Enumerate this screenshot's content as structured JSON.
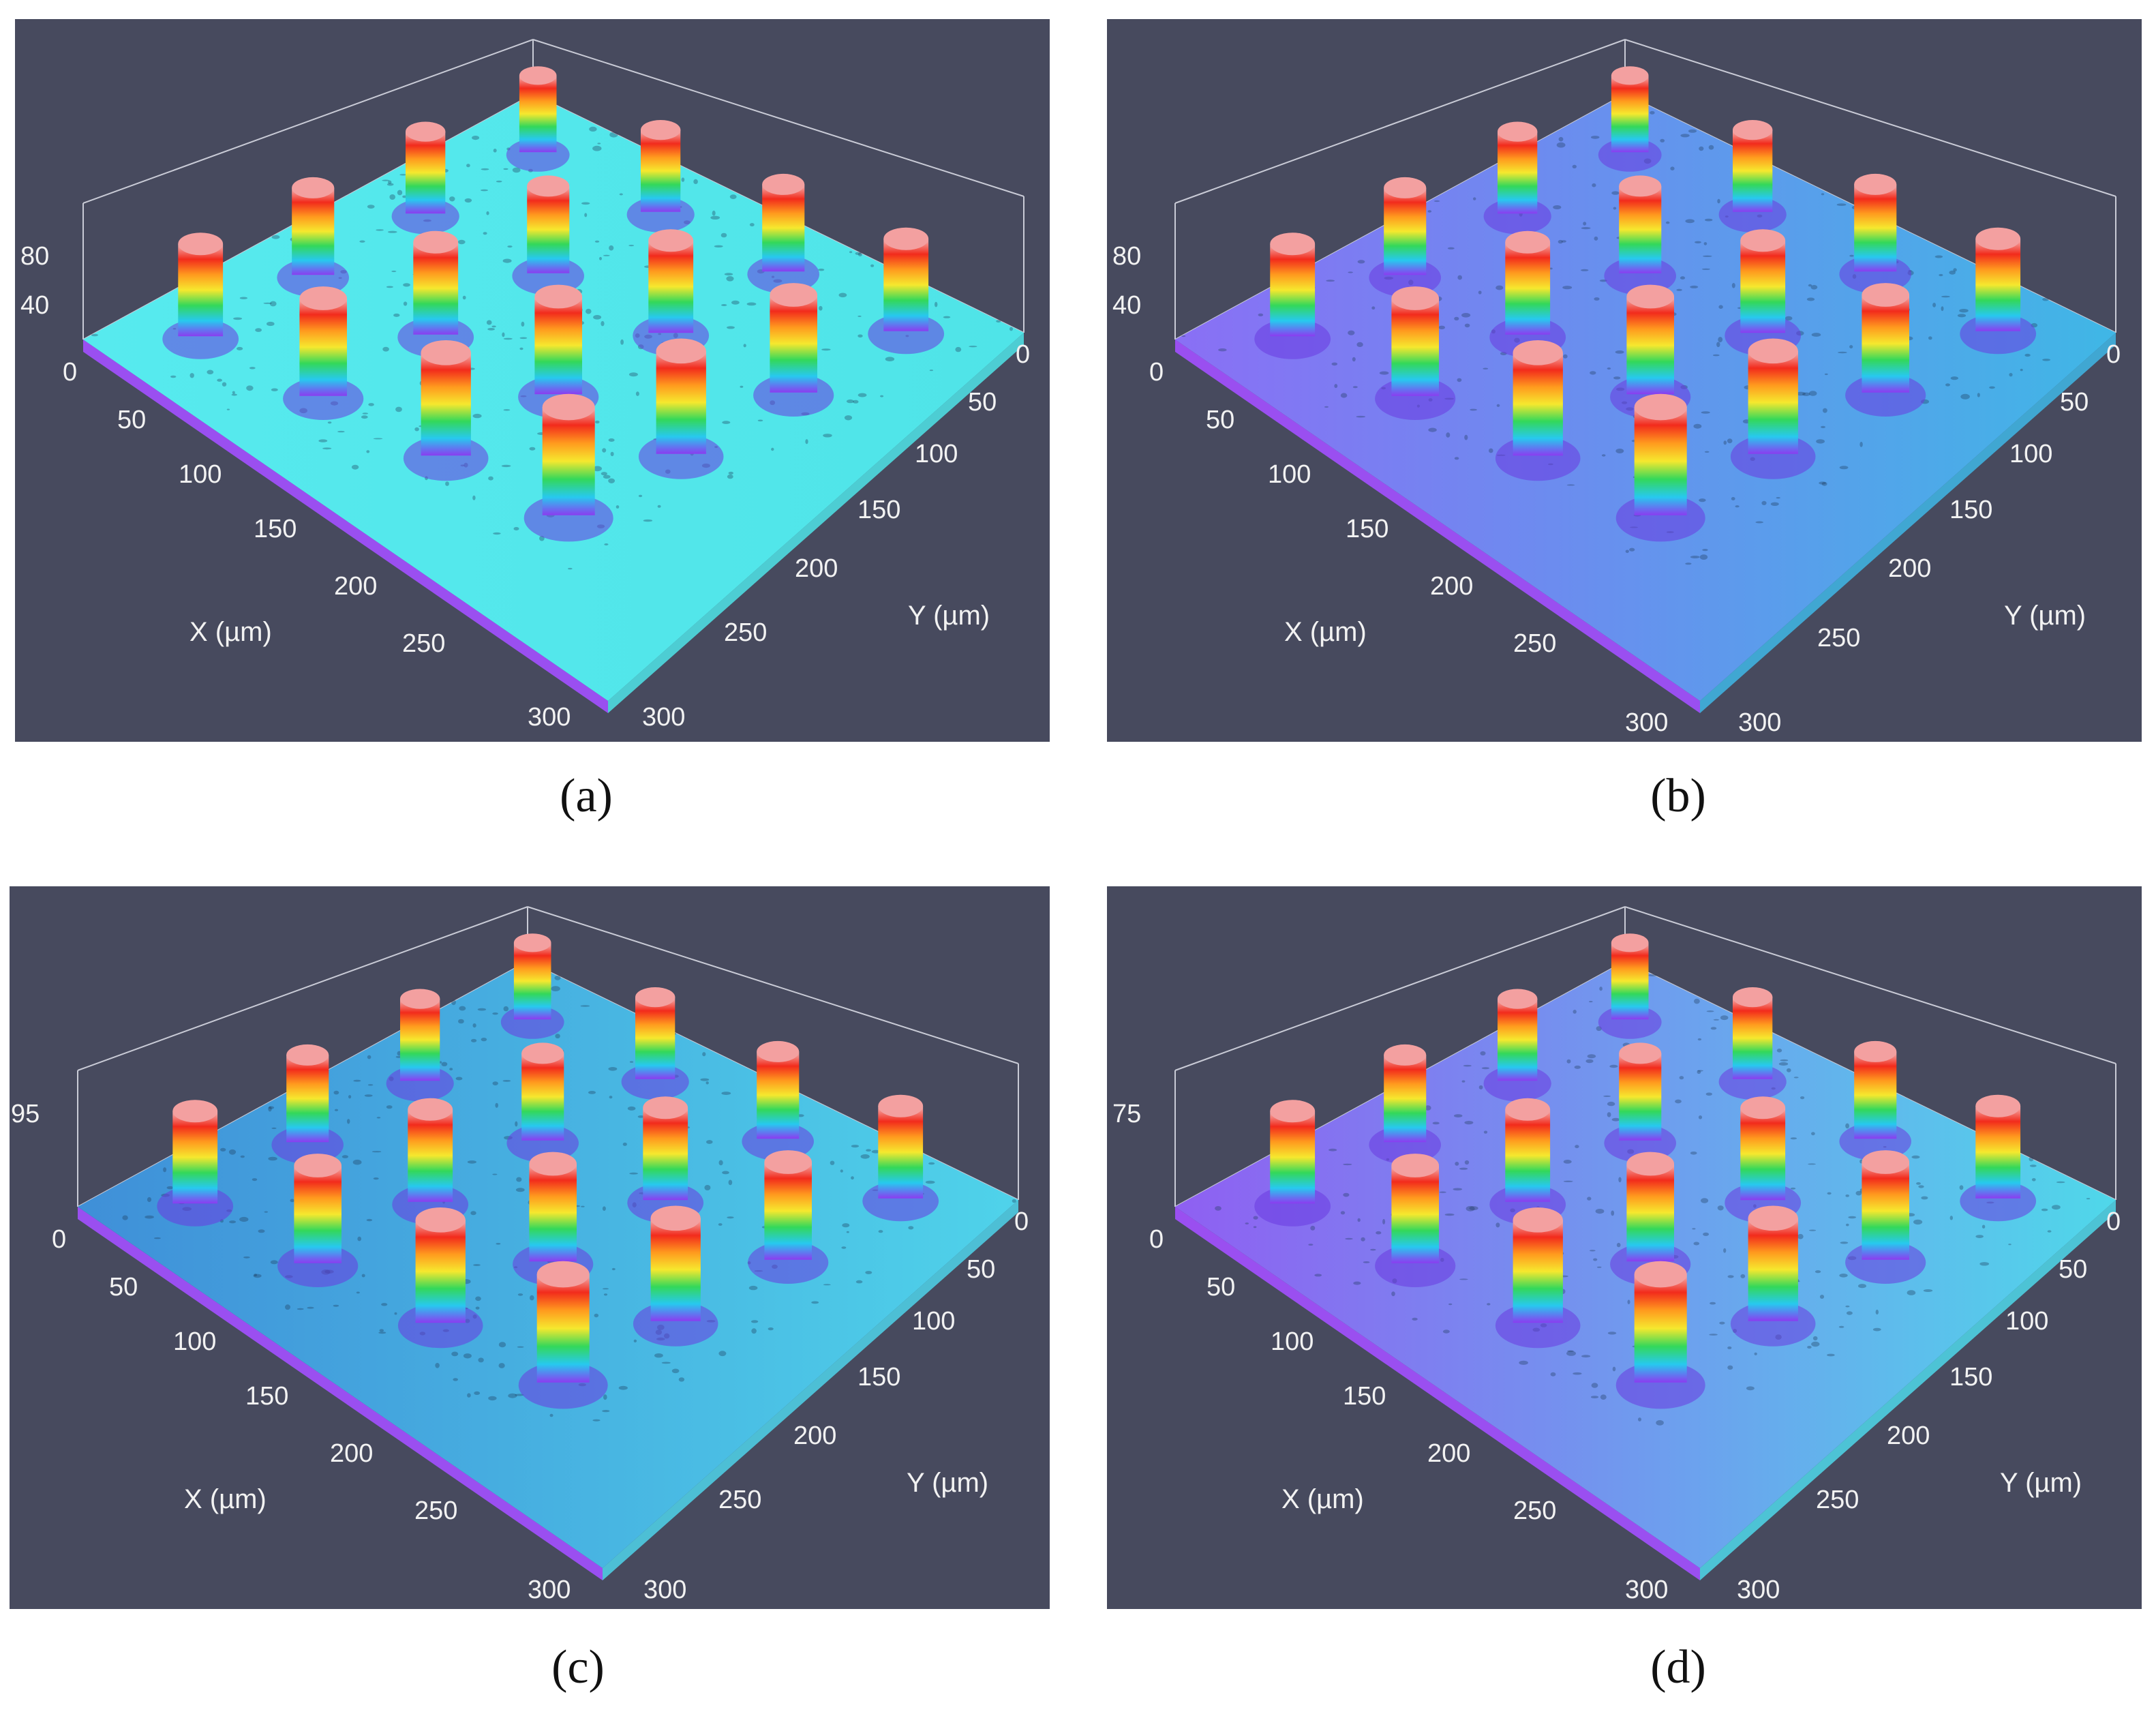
{
  "panels": [
    {
      "caption": "(a)",
      "z_ticks": [
        "80",
        "40"
      ],
      "x_ticks": [
        "0",
        "50",
        "100",
        "150",
        "200",
        "250",
        "300"
      ],
      "y_ticks": [
        "0",
        "50",
        "100",
        "150",
        "200",
        "250",
        "300"
      ],
      "x_label": "X (µm)",
      "y_label": "Y (µm)",
      "surface_color_left": "#57eaee",
      "surface_color_right": "#4fe4e8",
      "side_color": "#9a4ff0",
      "pillar_rows": [
        3,
        4,
        5,
        4,
        3
      ]
    },
    {
      "caption": "(b)",
      "z_ticks": [
        "80",
        "40"
      ],
      "x_ticks": [
        "0",
        "50",
        "100",
        "150",
        "200",
        "250",
        "300"
      ],
      "y_ticks": [
        "0",
        "50",
        "100",
        "150",
        "200",
        "250",
        "300"
      ],
      "x_label": "X (µm)",
      "y_label": "Y (µm)",
      "surface_color_left": "#8a6ff5",
      "surface_color_right": "#3fb7e6",
      "side_color": "#9a4ff0",
      "pillar_rows": [
        3,
        4,
        5,
        4,
        3
      ]
    },
    {
      "caption": "(c)",
      "z_ticks": [
        "95"
      ],
      "x_ticks": [
        "0",
        "50",
        "100",
        "150",
        "200",
        "250",
        "300"
      ],
      "y_ticks": [
        "0",
        "50",
        "100",
        "150",
        "200",
        "250",
        "300"
      ],
      "x_label": "X (µm)",
      "y_label": "Y (µm)",
      "surface_color_left": "#3f8fd8",
      "surface_color_right": "#4fd3ea",
      "side_color": "#9a4ff0",
      "pillar_rows": [
        3,
        4,
        5,
        4,
        3
      ]
    },
    {
      "caption": "(d)",
      "z_ticks": [
        "75"
      ],
      "x_ticks": [
        "0",
        "50",
        "100",
        "150",
        "200",
        "250",
        "300"
      ],
      "y_ticks": [
        "0",
        "50",
        "100",
        "150",
        "200",
        "250",
        "300"
      ],
      "x_label": "X (µm)",
      "y_label": "Y (µm)",
      "surface_color_left": "#8f5ff2",
      "surface_color_right": "#4fd8ea",
      "side_color": "#9a4ff0",
      "pillar_rows": [
        3,
        4,
        5,
        4,
        3
      ]
    }
  ],
  "colors": {
    "panel_background": "#474a5e",
    "frame_line": "#c9cbd6",
    "tick_text": "#f2f2f2",
    "pillar_gradient": [
      "#8b3cf0",
      "#27c9ef",
      "#33d85a",
      "#f6e82e",
      "#ff9a1e",
      "#f22b1c",
      "#f4b8b8"
    ]
  }
}
